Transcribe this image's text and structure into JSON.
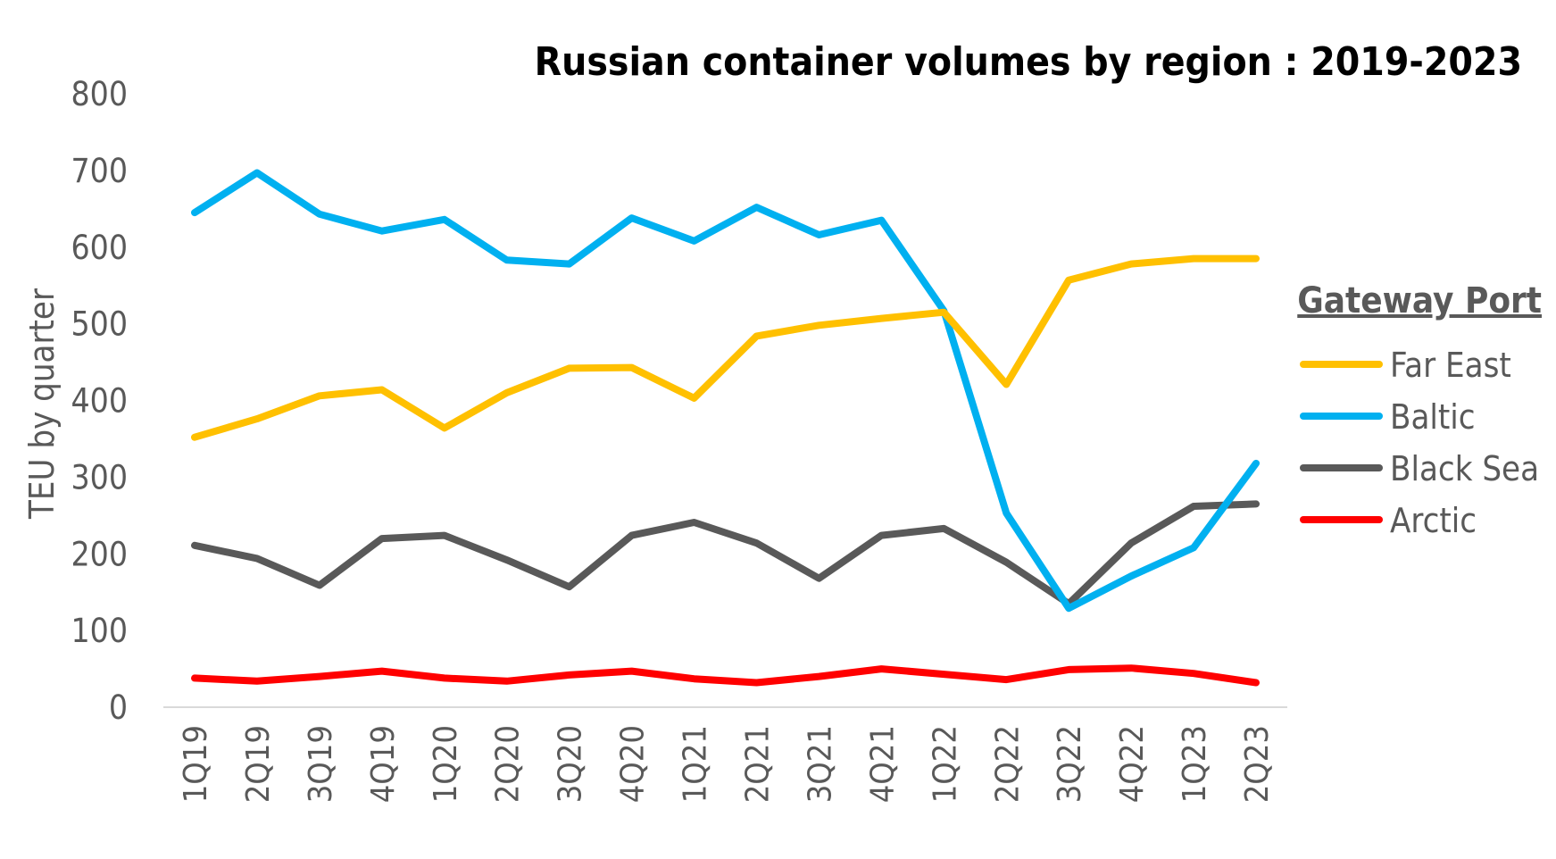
{
  "chart_data": {
    "type": "line",
    "title": "Russian container volumes by region : 2019-2023",
    "xlabel": "",
    "ylabel": "TEU by quarter",
    "ylim": [
      0,
      800
    ],
    "yticks": [
      "0",
      "100",
      "200",
      "300",
      "400",
      "500",
      "600",
      "700",
      "800"
    ],
    "categories": [
      "1Q19",
      "2Q19",
      "3Q19",
      "4Q19",
      "1Q20",
      "2Q20",
      "3Q20",
      "4Q20",
      "1Q21",
      "2Q21",
      "3Q21",
      "4Q21",
      "1Q22",
      "2Q22",
      "3Q22",
      "4Q22",
      "1Q23",
      "2Q23"
    ],
    "legend_title": "Gateway Port",
    "legend_position": "right",
    "series": [
      {
        "name": "Far East",
        "color": "#FFC000",
        "values": [
          352,
          376,
          406,
          414,
          364,
          410,
          442,
          443,
          403,
          484,
          498,
          507,
          515,
          421,
          557,
          578,
          585,
          585
        ]
      },
      {
        "name": "Baltic",
        "color": "#00B0F0",
        "values": [
          645,
          697,
          643,
          621,
          636,
          583,
          578,
          638,
          608,
          652,
          616,
          635,
          517,
          253,
          129,
          171,
          208,
          318
        ]
      },
      {
        "name": "Black Sea",
        "color": "#595959",
        "values": [
          211,
          194,
          159,
          220,
          224,
          192,
          157,
          224,
          241,
          214,
          168,
          224,
          233,
          189,
          135,
          214,
          262,
          265
        ]
      },
      {
        "name": "Arctic",
        "color": "#FF0000",
        "values": [
          38,
          34,
          40,
          47,
          38,
          34,
          42,
          47,
          37,
          32,
          40,
          50,
          43,
          36,
          49,
          51,
          44,
          32
        ]
      }
    ]
  }
}
